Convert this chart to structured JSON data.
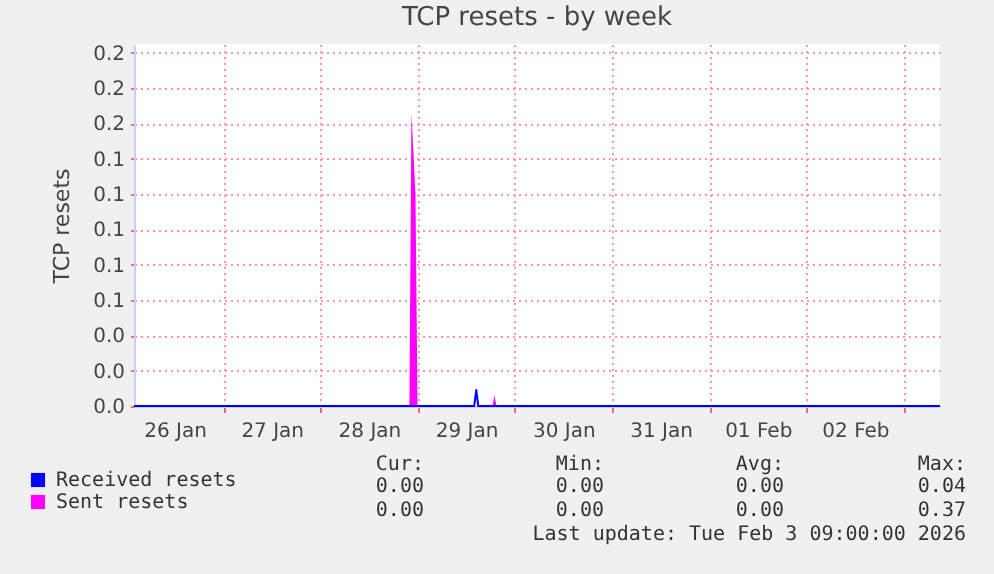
{
  "chart_data": {
    "type": "area",
    "title": "TCP resets - by week",
    "ylabel": "TCP resets",
    "xlim": [
      "2026-01-26T02:00",
      "2026-02-03T09:00"
    ],
    "xticks": [
      {
        "value": "2026-01-26T12:00",
        "label": "26 Jan"
      },
      {
        "value": "2026-01-27T00:00",
        "label": null
      },
      {
        "value": "2026-01-27T12:00",
        "label": "27 Jan"
      },
      {
        "value": "2026-01-28T00:00",
        "label": null
      },
      {
        "value": "2026-01-28T12:00",
        "label": "28 Jan"
      },
      {
        "value": "2026-01-29T00:00",
        "label": null
      },
      {
        "value": "2026-01-29T12:00",
        "label": "29 Jan"
      },
      {
        "value": "2026-01-30T00:00",
        "label": null
      },
      {
        "value": "2026-01-30T12:00",
        "label": "30 Jan"
      },
      {
        "value": "2026-01-31T00:00",
        "label": null
      },
      {
        "value": "2026-01-31T12:00",
        "label": "31 Jan"
      },
      {
        "value": "2026-02-01T00:00",
        "label": null
      },
      {
        "value": "2026-02-01T12:00",
        "label": "01 Feb"
      },
      {
        "value": "2026-02-02T00:00",
        "label": null
      },
      {
        "value": "2026-02-02T12:00",
        "label": "02 Feb"
      },
      {
        "value": "2026-02-03T00:00",
        "label": null
      }
    ],
    "ylim": [
      0,
      0.205
    ],
    "yticks": [
      {
        "value": 0,
        "label": "0.0"
      },
      {
        "value": 0.02,
        "label": "0.0"
      },
      {
        "value": 0.04,
        "label": "0.0"
      },
      {
        "value": 0.06,
        "label": "0.1"
      },
      {
        "value": 0.08,
        "label": "0.1"
      },
      {
        "value": 0.1,
        "label": "0.1"
      },
      {
        "value": 0.12,
        "label": "0.1"
      },
      {
        "value": 0.14,
        "label": "0.1"
      },
      {
        "value": 0.16,
        "label": "0.2"
      },
      {
        "value": 0.18,
        "label": "0.2"
      },
      {
        "value": 0.2,
        "label": "0.2"
      }
    ],
    "grid": true,
    "legend": "bottom left",
    "series": [
      {
        "name": "Received resets",
        "type": "line",
        "color": "#0000ff",
        "x": [
          "2026-01-26T02:00",
          "2026-01-29T14:00",
          "2026-01-29T14:30",
          "2026-01-29T15:00",
          "2026-02-03T09:00"
        ],
        "values": [
          0,
          0,
          0.009,
          0,
          0
        ]
      },
      {
        "name": "Sent resets",
        "color": "#ff00ff",
        "x": [
          "2026-01-26T02:00",
          "2026-01-28T22:00",
          "2026-01-28T22:30",
          "2026-01-28T23:30",
          "2026-01-29T00:00",
          "2026-01-29T18:30",
          "2026-01-29T19:00",
          "2026-01-29T19:30",
          "2026-02-03T09:00"
        ],
        "values": [
          0,
          0,
          0.166,
          0.12,
          0,
          0,
          0.006,
          0,
          0
        ]
      }
    ],
    "annotations": [
      "Cur:",
      "Min:",
      "Avg:",
      "Max:",
      "0.00",
      "0.00",
      "0.00",
      "0.04",
      "0.00",
      "0.00",
      "0.00",
      "0.37",
      "Last update: Tue Feb  3 09:00:00 2026"
    ]
  }
}
